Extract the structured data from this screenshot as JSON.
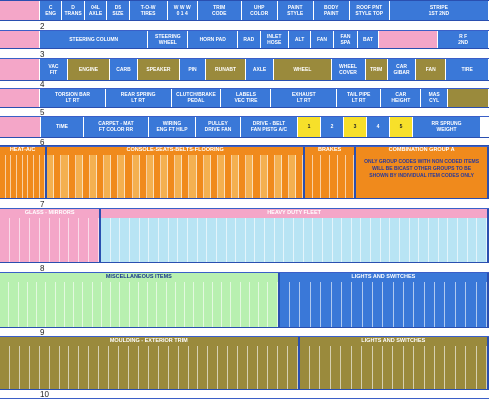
{
  "row_numbers": [
    "2",
    "3",
    "4",
    "5",
    "6",
    "7",
    "8",
    "9",
    "10"
  ],
  "bands": [
    {
      "cells": [
        {
          "label": "",
          "color": "#f4a6c8"
        },
        {
          "label": "C",
          "sub": "ENG",
          "color": "#3a78d8"
        },
        {
          "label": "D",
          "sub": "TRANS",
          "color": "#3a78d8"
        },
        {
          "label": "04L",
          "sub": "AXLE",
          "color": "#3a78d8"
        },
        {
          "label": "D5",
          "sub": "SIZE",
          "color": "#3a78d8"
        },
        {
          "label": "T-O-W",
          "sub": "TIRES",
          "color": "#3a78d8"
        },
        {
          "label": "W W W",
          "sub": "0 1 4",
          "color": "#3a78d8"
        },
        {
          "label": "TRIM",
          "sub": "CODE",
          "color": "#3a78d8"
        },
        {
          "label": "UHP",
          "sub": "COLOR",
          "color": "#3a78d8"
        },
        {
          "label": "PAINT",
          "sub": "STYLE",
          "color": "#3a78d8"
        },
        {
          "label": "BODY",
          "sub": "PAINT",
          "color": "#3a78d8"
        },
        {
          "label": "ROOF PNT",
          "sub": "STYLE TOP",
          "color": "#3a78d8"
        },
        {
          "label": "STRIPE",
          "sub": "1ST 2ND",
          "color": "#3a78d8"
        }
      ]
    },
    {
      "cells": [
        {
          "label": "",
          "color": "#f4a6c8"
        },
        {
          "label": "STEERING COLUMN",
          "color": "#3a78d8"
        },
        {
          "label": "STEERING",
          "sub": "WHEEL",
          "color": "#3a78d8"
        },
        {
          "label": "HORN PAD",
          "color": "#3a78d8"
        },
        {
          "label": "RAD",
          "color": "#3a78d8"
        },
        {
          "label": "INLET",
          "sub": "HOSE",
          "color": "#3a78d8"
        },
        {
          "label": "ALT",
          "color": "#3a78d8"
        },
        {
          "label": "FAN",
          "color": "#3a78d8"
        },
        {
          "label": "FAN",
          "sub": "SPA",
          "color": "#3a78d8"
        },
        {
          "label": "BAT",
          "color": "#3a78d8"
        },
        {
          "label": "",
          "color": "#f4a6c8"
        },
        {
          "label": "R F",
          "sub": "2ND",
          "color": "#3a78d8"
        }
      ]
    },
    {
      "cells": [
        {
          "label": "",
          "color": "#f4a6c8"
        },
        {
          "label": "VAC",
          "sub": "FIT",
          "color": "#3a78d8"
        },
        {
          "label": "ENGINE",
          "color": "#9a8a3c"
        },
        {
          "label": "CARB",
          "color": "#3a78d8"
        },
        {
          "label": "SPEAKER",
          "color": "#9a8a3c"
        },
        {
          "label": "PIN",
          "color": "#3a78d8"
        },
        {
          "label": "RUNABT",
          "color": "#9a8a3c"
        },
        {
          "label": "AXLE",
          "color": "#3a78d8"
        },
        {
          "label": "WHEEL",
          "color": "#9a8a3c"
        },
        {
          "label": "WHEEL",
          "sub": "COVER",
          "color": "#3a78d8"
        },
        {
          "label": "TRIM",
          "color": "#9a8a3c"
        },
        {
          "label": "CAR",
          "sub": "GIBAR",
          "color": "#3a78d8"
        },
        {
          "label": "FAN",
          "color": "#9a8a3c"
        },
        {
          "label": "TIRE",
          "color": "#3a78d8"
        }
      ]
    },
    {
      "cells": [
        {
          "label": "",
          "color": "#f4a6c8"
        },
        {
          "label": "TORSION BAR",
          "sub": "LT RT",
          "color": "#3a78d8"
        },
        {
          "label": "REAR SPRING",
          "sub": "LT RT",
          "color": "#3a78d8"
        },
        {
          "label": "CLUTCH/BRAKE",
          "sub": "PEDAL",
          "color": "#3a78d8"
        },
        {
          "label": "LABELS",
          "sub": "VEC TIRE",
          "color": "#3a78d8"
        },
        {
          "label": "EXHAUST",
          "sub": "LT RT",
          "color": "#3a78d8"
        },
        {
          "label": "TAIL PIPE",
          "sub": "LT RT",
          "color": "#3a78d8"
        },
        {
          "label": "CAR",
          "sub": "HEIGHT",
          "color": "#3a78d8"
        },
        {
          "label": "MAS",
          "sub": "CYL",
          "color": "#3a78d8"
        },
        {
          "label": "",
          "color": "#9a8a3c"
        }
      ]
    },
    {
      "cells": [
        {
          "label": "",
          "color": "#f4a6c8"
        },
        {
          "label": "TIME",
          "color": "#3a78d8"
        },
        {
          "label": "CARPET - MAT",
          "sub": "FT COLOR RR",
          "color": "#3a78d8"
        },
        {
          "label": "WIRING",
          "sub": "ENG FT HILP",
          "color": "#3a78d8"
        },
        {
          "label": "PULLEY",
          "sub": "DRIVE FAN",
          "color": "#3a78d8"
        },
        {
          "label": "DRIVE - BELT",
          "sub": "FAN PISTG A/C",
          "color": "#3a78d8"
        },
        {
          "label": "1",
          "color": "#f7e02a"
        },
        {
          "label": "2",
          "color": "#3a78d8"
        },
        {
          "label": "3",
          "color": "#f7e02a"
        },
        {
          "label": "4",
          "color": "#3a78d8"
        },
        {
          "label": "5",
          "color": "#f7e02a"
        },
        {
          "label": "RR SPRUNG",
          "sub": "WEIGHT",
          "color": "#3a78d8"
        }
      ]
    }
  ],
  "sections": [
    {
      "parts": [
        {
          "label": "HEAT-A/C",
          "color": "#f08a1c"
        },
        {
          "label": "CONSOLE-SEATS-BELTS-FLOORING",
          "color": "#f08a1c"
        },
        {
          "label": "BRAKES",
          "color": "#f08a1c"
        },
        {
          "label": "COMBINATION GROUP A",
          "color": "#f08a1c",
          "note": "ONLY GROUP CODES WITH NON CODED ITEMS WILL BE BICAST OTHER GROUPS TO BE SHOWN BY INDIVIDUAL ITEM CODES ONLY"
        }
      ]
    },
    {
      "parts": [
        {
          "label": "GLASS - MIRRORS",
          "color": "#f4a6c8"
        },
        {
          "label": "HEAVY DUTY FLEET",
          "color": "#f4a6c8"
        }
      ]
    },
    {
      "parts": [
        {
          "label": "MISCELLANEOUS ITEMS",
          "color": "#b8f0b0"
        },
        {
          "label": "LIGHTS AND SWITCHES",
          "color": "#3a78d8"
        }
      ]
    },
    {
      "parts": [
        {
          "label": "MOULDING - EXTERIOR TRIM",
          "color": "#9a8a3c"
        },
        {
          "label": "LIGHTS AND SWITCHES",
          "color": "#9a8a3c"
        }
      ]
    }
  ]
}
